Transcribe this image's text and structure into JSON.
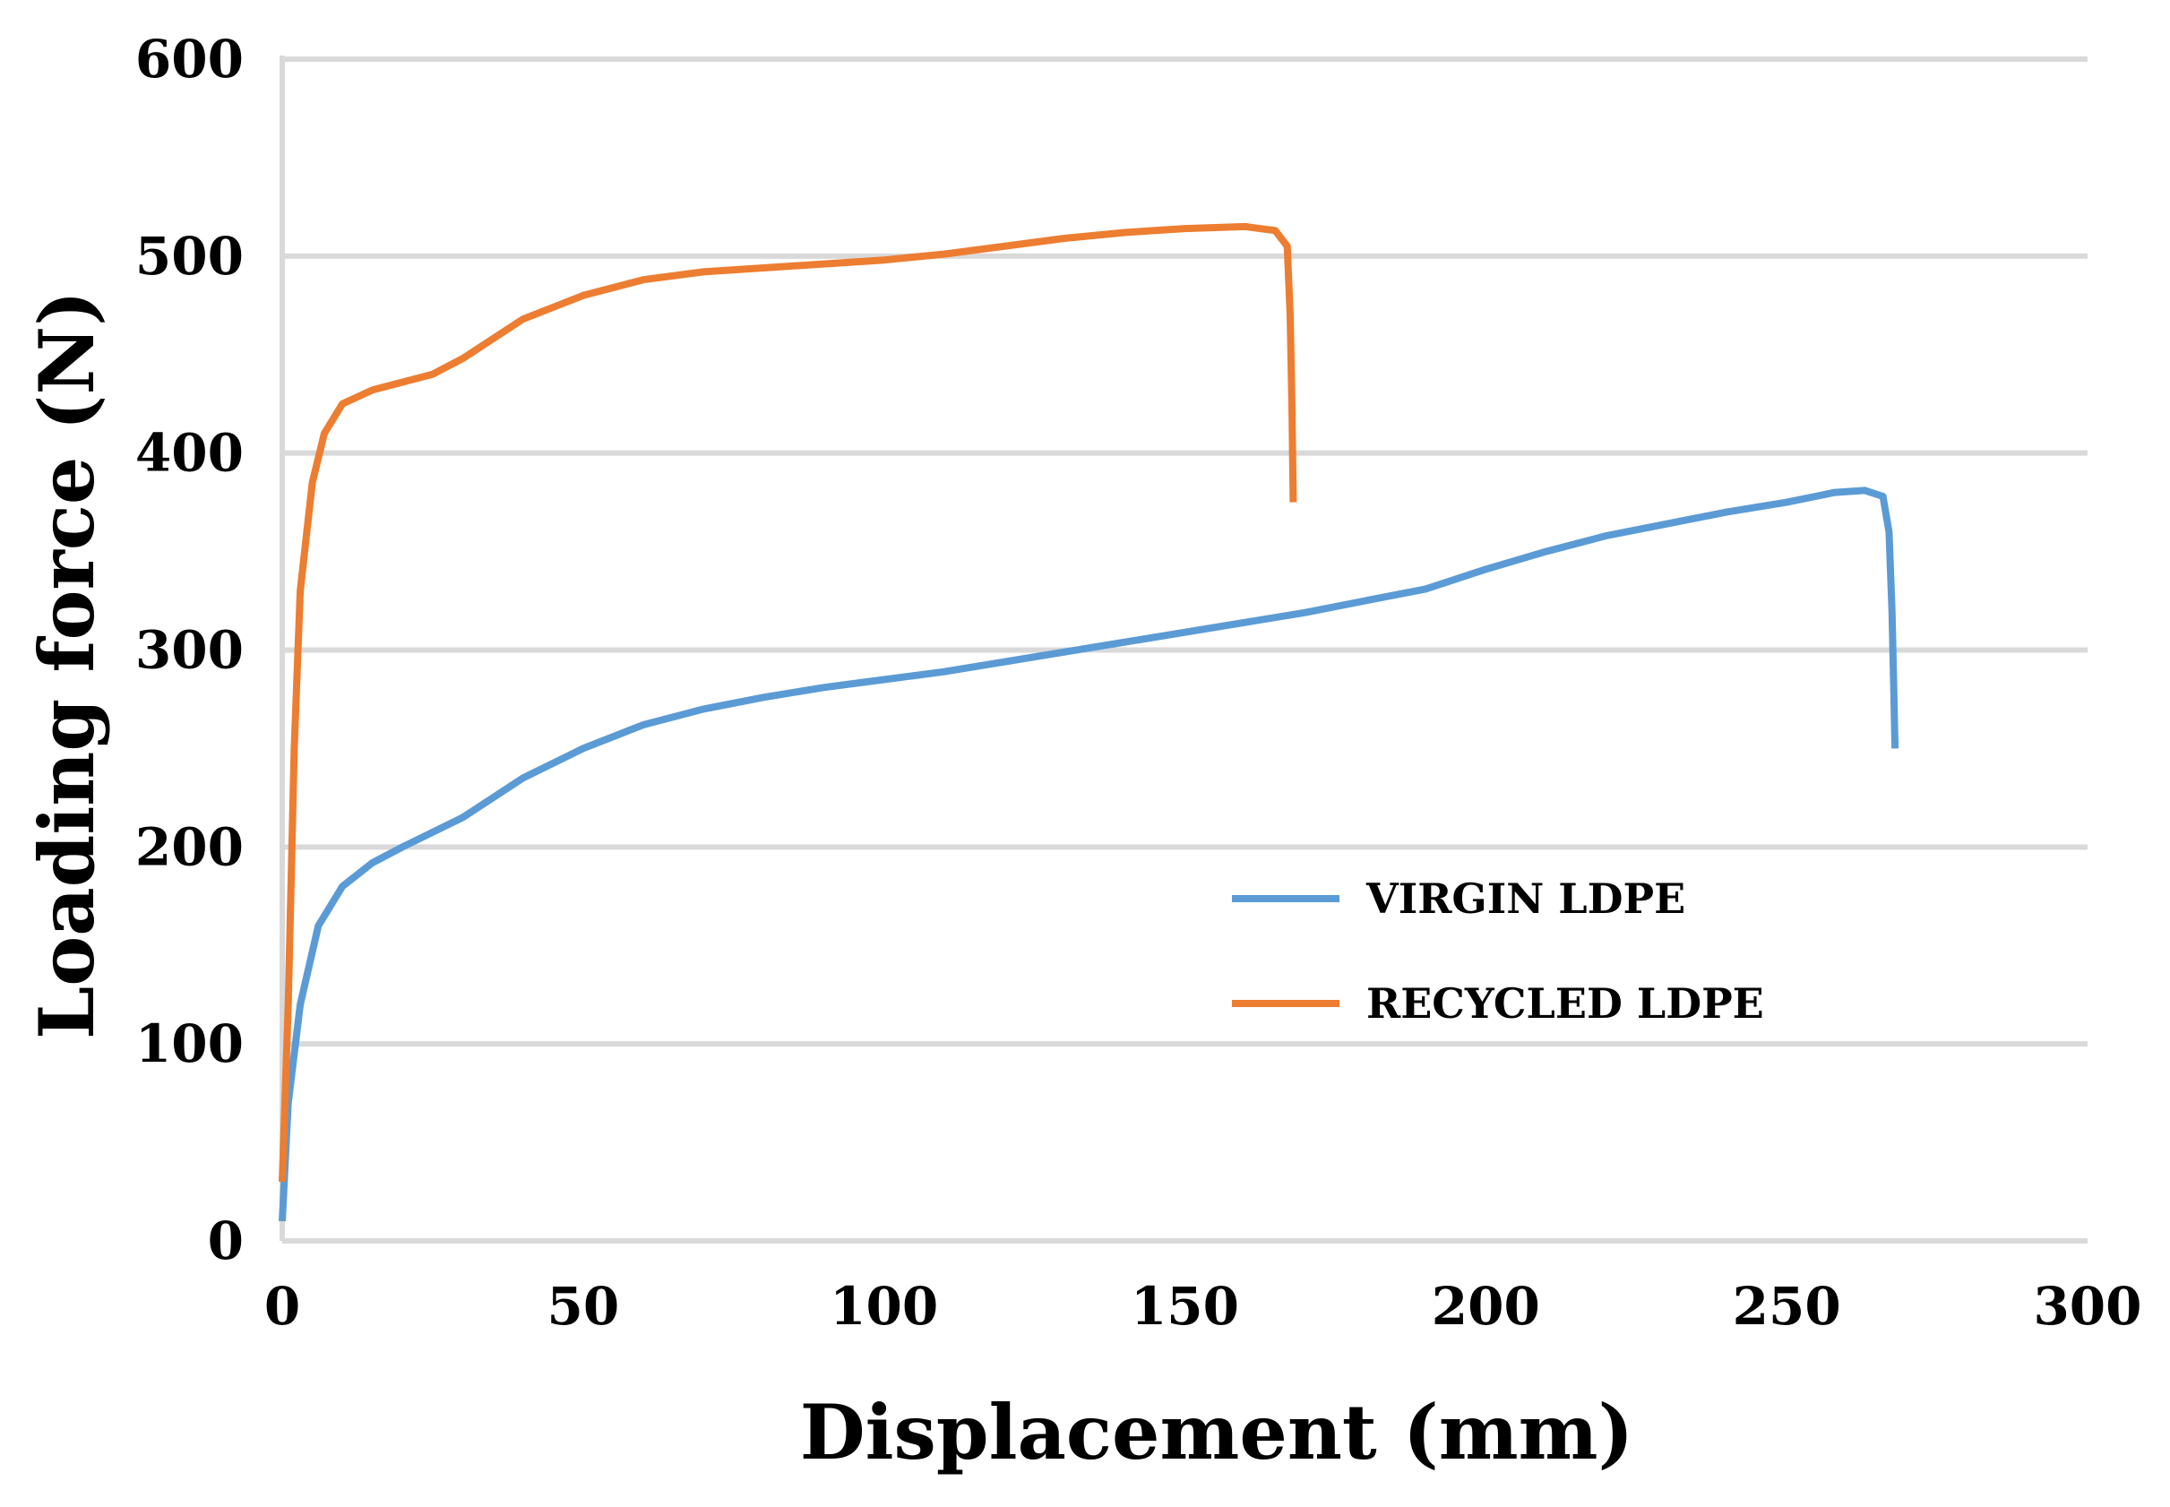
{
  "chart_data": {
    "type": "line",
    "title": "",
    "xlabel": "Displacement (mm)",
    "ylabel": "Loading force (N)",
    "xlim": [
      0,
      300
    ],
    "ylim": [
      0,
      600
    ],
    "x_ticks": [
      0,
      50,
      100,
      150,
      200,
      250,
      300
    ],
    "y_ticks": [
      0,
      100,
      200,
      300,
      400,
      500,
      600
    ],
    "grid": "horizontal",
    "legend_position": "lower-center-right",
    "series": [
      {
        "name": "VIRGIN LDPE",
        "color": "#5b9bd5",
        "points": [
          [
            0,
            10
          ],
          [
            1,
            70
          ],
          [
            3,
            120
          ],
          [
            6,
            160
          ],
          [
            10,
            180
          ],
          [
            15,
            192
          ],
          [
            20,
            200
          ],
          [
            30,
            215
          ],
          [
            40,
            235
          ],
          [
            50,
            250
          ],
          [
            60,
            262
          ],
          [
            70,
            270
          ],
          [
            80,
            276
          ],
          [
            90,
            281
          ],
          [
            100,
            285
          ],
          [
            110,
            289
          ],
          [
            120,
            294
          ],
          [
            130,
            299
          ],
          [
            140,
            304
          ],
          [
            150,
            309
          ],
          [
            160,
            314
          ],
          [
            170,
            319
          ],
          [
            180,
            325
          ],
          [
            190,
            331
          ],
          [
            200,
            341
          ],
          [
            210,
            350
          ],
          [
            220,
            358
          ],
          [
            230,
            364
          ],
          [
            240,
            370
          ],
          [
            250,
            375
          ],
          [
            258,
            380
          ],
          [
            263,
            381
          ],
          [
            266,
            378
          ],
          [
            267,
            360
          ],
          [
            267.5,
            320
          ],
          [
            267.8,
            280
          ],
          [
            268,
            250
          ]
        ]
      },
      {
        "name": "RECYCLED LDPE",
        "color": "#ed7d31",
        "points": [
          [
            0,
            30
          ],
          [
            1,
            120
          ],
          [
            2,
            250
          ],
          [
            3,
            330
          ],
          [
            5,
            385
          ],
          [
            7,
            410
          ],
          [
            10,
            425
          ],
          [
            15,
            432
          ],
          [
            20,
            436
          ],
          [
            25,
            440
          ],
          [
            30,
            448
          ],
          [
            40,
            468
          ],
          [
            50,
            480
          ],
          [
            60,
            488
          ],
          [
            70,
            492
          ],
          [
            80,
            494
          ],
          [
            90,
            496
          ],
          [
            100,
            498
          ],
          [
            110,
            501
          ],
          [
            120,
            505
          ],
          [
            130,
            509
          ],
          [
            140,
            512
          ],
          [
            150,
            514
          ],
          [
            160,
            515
          ],
          [
            165,
            513
          ],
          [
            167,
            505
          ],
          [
            167.5,
            470
          ],
          [
            167.8,
            420
          ],
          [
            168,
            375
          ]
        ]
      }
    ]
  }
}
